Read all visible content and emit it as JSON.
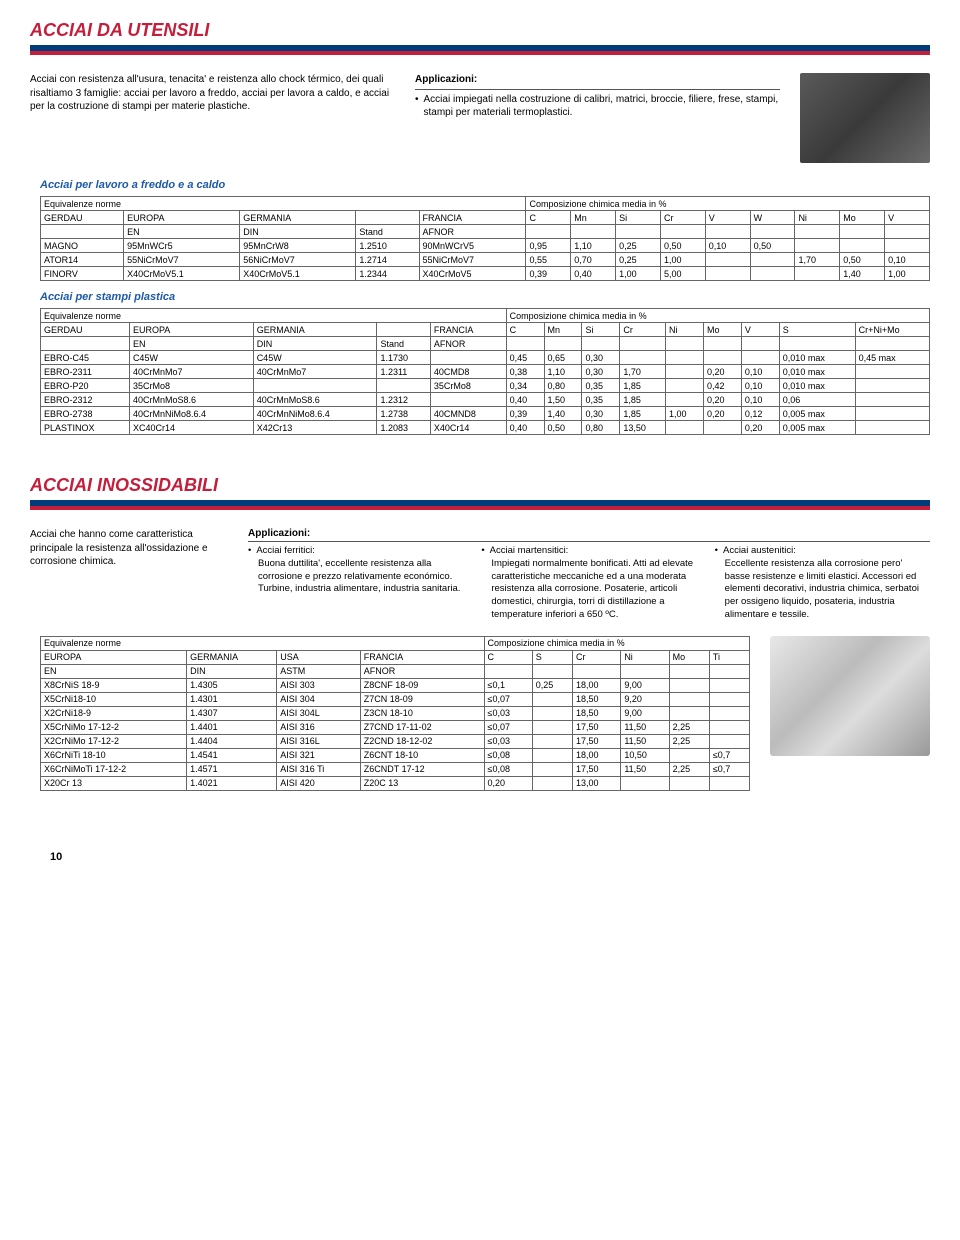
{
  "section1": {
    "title": "ACCIAI DA UTENSILI",
    "intro": "Acciai con resistenza all'usura, tenacita' e reistenza allo chock térmico, dei quali risaltiamo 3 famiglie: acciai per lavoro a freddo, acciai per lavora a caldo, e acciai per la costruzione di stampi per materie plastiche.",
    "apps_label": "Applicazioni:",
    "apps_text": "Acciai impiegati nella costruzione di calibri, matrici, broccie, filiere, frese, stampi, stampi per materiali termoplastici.",
    "sub1": "Acciai per lavoro a freddo e a caldo",
    "sub2": "Acciai per stampi plastica"
  },
  "t1": {
    "h_equiv": "Equivalenze norme",
    "h_comp": "Composizione chimica media in %",
    "cols_top": [
      "GERDAU",
      "EUROPA",
      "GERMANIA",
      "",
      "FRANCIA",
      "C",
      "Mn",
      "Si",
      "Cr",
      "V",
      "W",
      "Ni",
      "Mo",
      "V"
    ],
    "cols_sub": [
      "",
      "EN",
      "DIN",
      "Stand",
      "AFNOR",
      "",
      "",
      "",
      "",
      "",
      "",
      "",
      "",
      ""
    ],
    "rows": [
      [
        "MAGNO",
        "95MnWCr5",
        "95MnCrW8",
        "1.2510",
        "90MnWCrV5",
        "0,95",
        "1,10",
        "0,25",
        "0,50",
        "0,10",
        "0,50",
        "",
        "",
        ""
      ],
      [
        "ATOR14",
        "55NiCrMoV7",
        "56NiCrMoV7",
        "1.2714",
        "55NiCrMoV7",
        "0,55",
        "0,70",
        "0,25",
        "1,00",
        "",
        "",
        "1,70",
        "0,50",
        "0,10"
      ],
      [
        "FINORV",
        "X40CrMoV5.1",
        "X40CrMoV5.1",
        "1.2344",
        "X40CrMoV5",
        "0,39",
        "0,40",
        "1,00",
        "5,00",
        "",
        "",
        "",
        "1,40",
        "1,00"
      ]
    ]
  },
  "t2": {
    "h_equiv": "Equivalenze norme",
    "h_comp": "Composizione chimica media in %",
    "cols_top": [
      "GERDAU",
      "EUROPA",
      "GERMANIA",
      "",
      "FRANCIA",
      "C",
      "Mn",
      "Si",
      "Cr",
      "Ni",
      "Mo",
      "V",
      "S",
      "Cr+Ni+Mo"
    ],
    "cols_sub": [
      "",
      "EN",
      "DIN",
      "Stand",
      "AFNOR",
      "",
      "",
      "",
      "",
      "",
      "",
      "",
      "",
      ""
    ],
    "rows": [
      [
        "EBRO-C45",
        "C45W",
        "C45W",
        "1.1730",
        "",
        "0,45",
        "0,65",
        "0,30",
        "",
        "",
        "",
        "",
        "0,010 max",
        "0,45 max"
      ],
      [
        "EBRO-2311",
        "40CrMnMo7",
        "40CrMnMo7",
        "1.2311",
        "40CMD8",
        "0,38",
        "1,10",
        "0,30",
        "1,70",
        "",
        "0,20",
        "0,10",
        "0,010 max",
        ""
      ],
      [
        "EBRO-P20",
        "35CrMo8",
        "",
        "",
        "35CrMo8",
        "0,34",
        "0,80",
        "0,35",
        "1,85",
        "",
        "0,42",
        "0,10",
        "0,010 max",
        ""
      ],
      [
        "EBRO-2312",
        "40CrMnMoS8.6",
        "40CrMnMoS8.6",
        "1.2312",
        "",
        "0,40",
        "1,50",
        "0,35",
        "1,85",
        "",
        "0,20",
        "0,10",
        "0,06",
        ""
      ],
      [
        "EBRO-2738",
        "40CrMnNiMo8.6.4",
        "40CrMnNiMo8.6.4",
        "1.2738",
        "40CMND8",
        "0,39",
        "1,40",
        "0,30",
        "1,85",
        "1,00",
        "0,20",
        "0,12",
        "0,005 max",
        ""
      ],
      [
        "PLASTINOX",
        "XC40Cr14",
        "X42Cr13",
        "1.2083",
        "X40Cr14",
        "0,40",
        "0,50",
        "0,80",
        "13,50",
        "",
        "",
        "0,20",
        "0,005 max",
        ""
      ]
    ]
  },
  "section2": {
    "title": "ACCIAI INOSSIDABILI",
    "intro": "Acciai che hanno come caratteristica principale la resistenza all'ossidazione e corrosione chimica.",
    "apps_label": "Applicazioni:",
    "ferr_t": "Acciai ferritici:",
    "ferr": "Buona duttilita', eccellente resistenza alla corrosione e prezzo relativamente económico. Turbine, industria alimentare, industria sanitaria.",
    "mart_t": "Acciai martensitici:",
    "mart": "Impiegati normalmente bonificati. Atti ad elevate caratteristiche meccaniche ed a una moderata resistenza alla corrosione. Posaterie, articoli domestici, chirurgia, torri di distillazione a temperature inferiori a 650 ºC.",
    "aust_t": "Acciai austenitici:",
    "aust": "Eccellente resistenza alla corrosione pero' basse resistenze e limiti elastici. Accessori ed elementi decorativi, industria chimica, serbatoi per ossigeno liquido, posateria, industria alimentare e tessile."
  },
  "t3": {
    "h_equiv": "Equivalenze norme",
    "h_comp": "Composizione chimica media in %",
    "cols_top": [
      "EUROPA",
      "GERMANIA",
      "USA",
      "FRANCIA",
      "C",
      "S",
      "Cr",
      "Ni",
      "Mo",
      "Ti"
    ],
    "cols_sub": [
      "EN",
      "DIN",
      "ASTM",
      "AFNOR",
      "",
      "",
      "",
      "",
      "",
      ""
    ],
    "rows": [
      [
        "X8CrNiS 18-9",
        "1.4305",
        "AISI 303",
        "Z8CNF 18-09",
        "≤0,1",
        "0,25",
        "18,00",
        "9,00",
        "",
        ""
      ],
      [
        "X5CrNi18-10",
        "1.4301",
        "AISI 304",
        "Z7CN 18-09",
        "≤0,07",
        "",
        "18,50",
        "9,20",
        "",
        ""
      ],
      [
        "X2CrNi18-9",
        "1.4307",
        "AISI 304L",
        "Z3CN 18-10",
        "≤0,03",
        "",
        "18,50",
        "9,00",
        "",
        ""
      ],
      [
        "X5CrNiMo 17-12-2",
        "1.4401",
        "AISI 316",
        "Z7CND 17-11-02",
        "≤0,07",
        "",
        "17,50",
        "11,50",
        "2,25",
        ""
      ],
      [
        "X2CrNiMo 17-12-2",
        "1.4404",
        "AISI 316L",
        "Z2CND 18-12-02",
        "≤0,03",
        "",
        "17,50",
        "11,50",
        "2,25",
        ""
      ],
      [
        "X6CrNiTi 18-10",
        "1.4541",
        "AISI 321",
        "Z6CNT 18-10",
        "≤0,08",
        "",
        "18,00",
        "10,50",
        "",
        "≤0,7"
      ],
      [
        "X6CrNiMoTi 17-12-2",
        "1.4571",
        "AISI 316 Ti",
        "Z6CNDT 17-12",
        "≤0,08",
        "",
        "17,50",
        "11,50",
        "2,25",
        "≤0,7"
      ],
      [
        "X20Cr 13",
        "1.4021",
        "AISI 420",
        "Z20C 13",
        "0,20",
        "",
        "13,00",
        "",
        "",
        ""
      ]
    ]
  },
  "page_number": "10"
}
